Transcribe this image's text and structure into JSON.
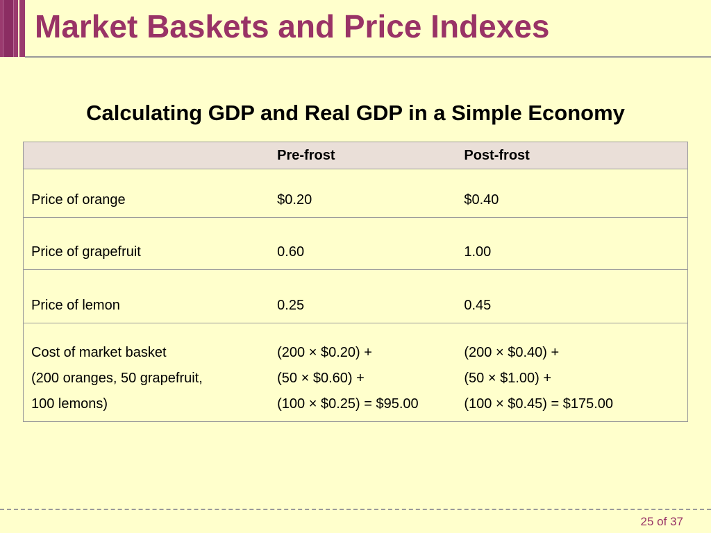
{
  "slide": {
    "title": "Market Baskets and Price Indexes",
    "subtitle": "Calculating GDP and Real GDP in a Simple Economy",
    "page_number": "25 of 37"
  },
  "table": {
    "headers": [
      "",
      "Pre-frost",
      "Post-frost"
    ],
    "rows": [
      {
        "label": [
          "Price of orange"
        ],
        "pre": [
          "$0.20"
        ],
        "post": [
          "$0.40"
        ]
      },
      {
        "label": [
          "Price of grapefruit"
        ],
        "pre": [
          "0.60"
        ],
        "post": [
          "1.00"
        ]
      },
      {
        "label": [
          "Price of lemon"
        ],
        "pre": [
          "0.25"
        ],
        "post": [
          "0.45"
        ]
      },
      {
        "label": [
          "Cost of market basket",
          "(200 oranges, 50 grapefruit,",
          "100 lemons)"
        ],
        "pre": [
          "(200 × $0.20) +",
          "(50 × $0.60) +",
          "(100 × $0.25) = $95.00"
        ],
        "post": [
          "(200 × $0.40) +",
          "(50 × $1.00) +",
          "(100 × $0.45) = $175.00"
        ]
      }
    ]
  },
  "colors": {
    "background": "#FFFFCC",
    "title": "#993366",
    "header_fill": "#EADFD8",
    "rule": "#999999"
  }
}
